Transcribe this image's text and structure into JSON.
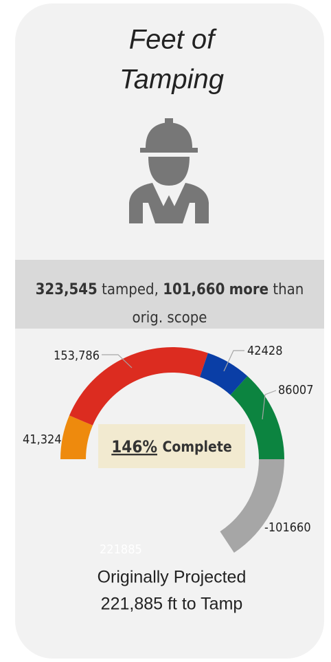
{
  "title_lines": [
    "Feet of",
    "Tamping"
  ],
  "summary": {
    "tamped_value": "323,545",
    "tamped_text": "tamped,",
    "more_value": "101,660",
    "more_word": "more",
    "rest_1": "than",
    "rest_2": "orig. scope"
  },
  "chart_data": {
    "type": "donut",
    "values": [
      41324,
      153786,
      42428,
      86007,
      -101660,
      221885
    ],
    "value_labels": [
      "41,324",
      "153,786",
      "42428",
      "86007",
      "-101660",
      "221885"
    ],
    "colors": [
      "#ee8a0d",
      "#dc2c20",
      "#0a3ea6",
      "#0c8440",
      "#a6a6a6",
      "transparent"
    ],
    "center_label": {
      "percent": "146%",
      "text": "Complete"
    }
  },
  "footer_lines": [
    "Originally Projected",
    "221,885 ft to Tamp"
  ]
}
